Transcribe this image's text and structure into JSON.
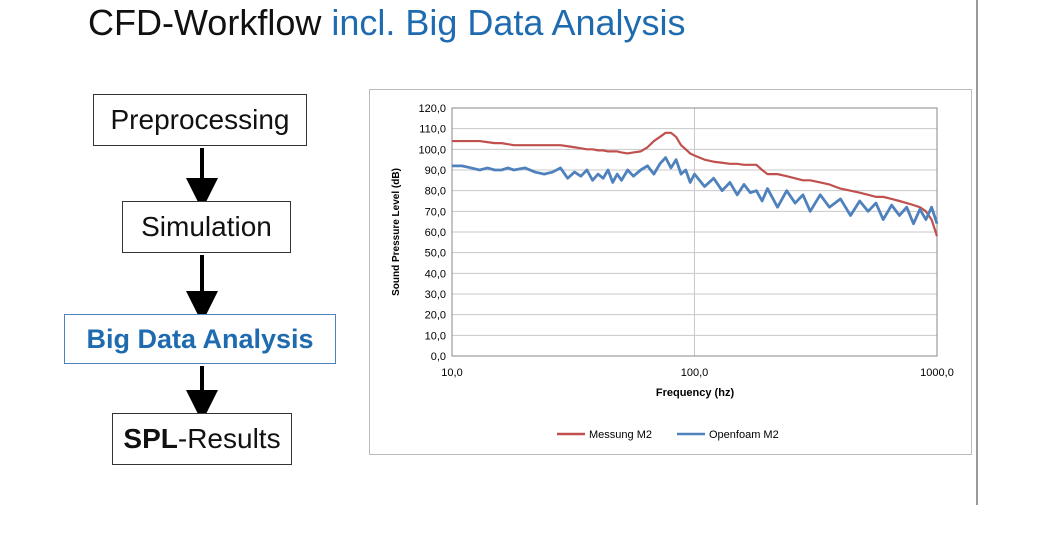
{
  "title": {
    "main": "CFD-Workflow",
    "highlight": "incl. Big Data Analysis"
  },
  "nodes": [
    {
      "label": "Preprocessing"
    },
    {
      "label": "Simulation"
    },
    {
      "label": "Big Data Analysis"
    },
    {
      "label_bold": "SPL",
      "label": "-Results"
    }
  ],
  "chart_data": {
    "type": "line",
    "xlabel": "Frequency (hz)",
    "ylabel": "Sound Pressure Level (dB)",
    "xscale": "log",
    "grid": true,
    "legend": "bottom",
    "xlim": [
      10,
      1000
    ],
    "xticks": [
      {
        "value": 10,
        "label": "10,0"
      },
      {
        "value": 100,
        "label": "100,0"
      },
      {
        "value": 1000,
        "label": "1000,0"
      }
    ],
    "ylim": [
      0,
      120
    ],
    "yticks": [
      {
        "value": 0,
        "label": "0,0"
      },
      {
        "value": 10,
        "label": "10,0"
      },
      {
        "value": 20,
        "label": "20,0"
      },
      {
        "value": 30,
        "label": "30,0"
      },
      {
        "value": 40,
        "label": "40,0"
      },
      {
        "value": 50,
        "label": "50,0"
      },
      {
        "value": 60,
        "label": "60,0"
      },
      {
        "value": 70,
        "label": "70,0"
      },
      {
        "value": 80,
        "label": "80,0"
      },
      {
        "value": 90,
        "label": "90,0"
      },
      {
        "value": 100,
        "label": "100,0"
      },
      {
        "value": 110,
        "label": "110,0"
      },
      {
        "value": 120,
        "label": "120,0"
      }
    ],
    "x": [
      10,
      11,
      12,
      13,
      14,
      15,
      16,
      17,
      18,
      20,
      22,
      24,
      26,
      28,
      30,
      32,
      34,
      36,
      38,
      40,
      42,
      44,
      46,
      48,
      50,
      53,
      56,
      60,
      64,
      68,
      72,
      76,
      80,
      84,
      88,
      92,
      96,
      100,
      110,
      120,
      130,
      140,
      150,
      160,
      170,
      180,
      190,
      200,
      220,
      240,
      260,
      280,
      300,
      330,
      360,
      400,
      440,
      480,
      520,
      560,
      600,
      650,
      700,
      750,
      800,
      850,
      900,
      950,
      1000
    ],
    "series": [
      {
        "name": "Messung M2",
        "color": "#c0504d",
        "values": [
          104,
          104,
          104,
          104,
          103.5,
          103,
          103,
          102.5,
          102,
          102,
          102,
          102,
          102,
          102,
          101.5,
          101,
          100.5,
          100,
          100,
          99.5,
          99.5,
          99,
          99,
          99,
          98.5,
          98,
          98.5,
          99,
          101,
          104,
          106,
          108,
          108,
          106,
          102,
          100,
          98,
          97,
          95,
          94,
          93.5,
          93,
          93,
          92.5,
          92.5,
          92.5,
          90,
          88,
          88,
          87,
          86,
          85,
          85,
          84,
          83,
          81,
          80,
          79,
          78,
          77,
          77,
          76,
          75,
          74,
          73,
          72,
          70,
          66,
          58
        ]
      },
      {
        "name": "Openfoam M2",
        "color": "#4f81bd",
        "values": [
          92,
          92,
          91,
          90,
          91,
          90,
          90,
          91,
          90,
          91,
          89,
          88,
          89,
          91,
          86,
          89,
          87,
          90,
          85,
          88,
          86,
          90,
          84,
          88,
          85,
          90,
          87,
          90,
          92,
          88,
          93,
          96,
          91,
          95,
          88,
          90,
          84,
          88,
          82,
          86,
          80,
          84,
          78,
          83,
          79,
          80,
          75,
          81,
          72,
          80,
          74,
          78,
          70,
          78,
          72,
          76,
          68,
          75,
          70,
          74,
          66,
          73,
          68,
          72,
          64,
          71,
          66,
          72,
          64
        ]
      }
    ]
  }
}
